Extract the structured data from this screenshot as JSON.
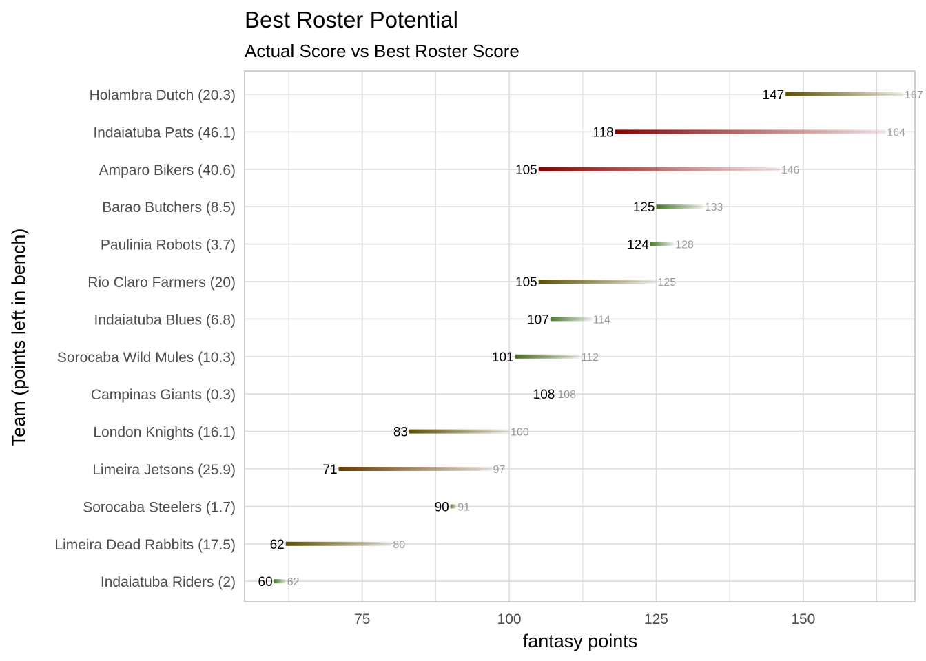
{
  "chart_data": {
    "type": "dumbbell",
    "title": "Best Roster Potential",
    "subtitle": "Actual Score vs Best Roster Score",
    "xlabel": "fantasy points",
    "ylabel": "Team (points left in bench)",
    "xlim": [
      55,
      169
    ],
    "xticks": [
      75,
      100,
      125,
      150
    ],
    "grid": true,
    "legend": "none",
    "colors": {
      "high_bench": "#8b0000",
      "mid_bench": "#5c5000",
      "low_bench": "#4a7a2a",
      "best_label": "#9a9a9a",
      "gridline": "#dcdcdc",
      "panel_border": "#b0b0b0"
    },
    "teams": [
      {
        "label": "Holambra Dutch (20.3)",
        "actual": 147,
        "best": 167,
        "actual_label": "147",
        "best_label": "167",
        "color": "#5c5000"
      },
      {
        "label": "Indaiatuba Pats (46.1)",
        "actual": 118,
        "best": 164,
        "actual_label": "118",
        "best_label": "164",
        "color": "#8b0000"
      },
      {
        "label": "Amparo Bikers (40.6)",
        "actual": 105,
        "best": 146,
        "actual_label": "105",
        "best_label": "146",
        "color": "#8b0000"
      },
      {
        "label": "Barao Butchers (8.5)",
        "actual": 125,
        "best": 133,
        "actual_label": "125",
        "best_label": "133",
        "color": "#4a7a2a"
      },
      {
        "label": "Paulinia Robots (3.7)",
        "actual": 124,
        "best": 128,
        "actual_label": "124",
        "best_label": "128",
        "color": "#4a7a2a"
      },
      {
        "label": "Rio Claro Farmers (20)",
        "actual": 105,
        "best": 125,
        "actual_label": "105",
        "best_label": "125",
        "color": "#5c5000"
      },
      {
        "label": "Indaiatuba Blues (6.8)",
        "actual": 107,
        "best": 114,
        "actual_label": "107",
        "best_label": "114",
        "color": "#4a7a2a"
      },
      {
        "label": "Sorocaba Wild Mules (10.3)",
        "actual": 101,
        "best": 112,
        "actual_label": "101",
        "best_label": "112",
        "color": "#4a6a20"
      },
      {
        "label": "Campinas Giants (0.3)",
        "actual": 108,
        "best": 108,
        "actual_label": "108",
        "best_label": "108",
        "color": "#4a7a2a"
      },
      {
        "label": "London Knights (16.1)",
        "actual": 83,
        "best": 100,
        "actual_label": "83",
        "best_label": "100",
        "color": "#5c5000"
      },
      {
        "label": "Limeira Jetsons (25.9)",
        "actual": 71,
        "best": 97,
        "actual_label": "71",
        "best_label": "97",
        "color": "#6b3a00"
      },
      {
        "label": "Sorocaba Steelers (1.7)",
        "actual": 90,
        "best": 91,
        "actual_label": "90",
        "best_label": "91",
        "color": "#4a7a2a"
      },
      {
        "label": "Limeira Dead Rabbits (17.5)",
        "actual": 62,
        "best": 80,
        "actual_label": "62",
        "best_label": "80",
        "color": "#5c5000"
      },
      {
        "label": "Indaiatuba Riders (2)",
        "actual": 60,
        "best": 62,
        "actual_label": "60",
        "best_label": "62",
        "color": "#4a7a2a"
      }
    ]
  }
}
